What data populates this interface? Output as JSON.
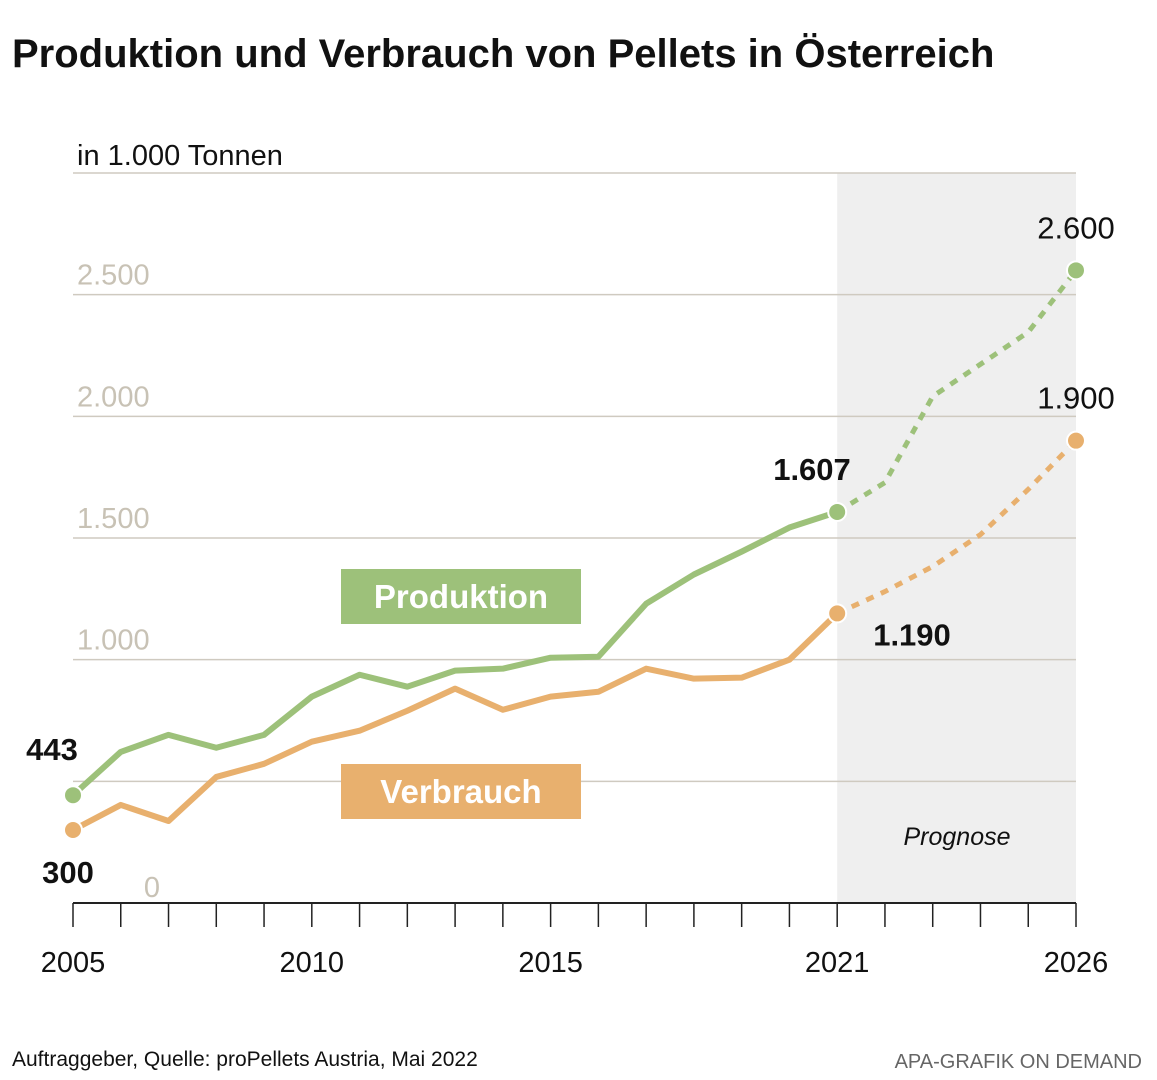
{
  "chart_data": {
    "type": "line",
    "title": "Produktion und Verbrauch von Pellets in Österreich",
    "ylabel": "in 1.000 Tonnen",
    "ylim": [
      0,
      3000
    ],
    "xlim": [
      2005,
      2026
    ],
    "yticks": [
      {
        "v": 0,
        "label": "0"
      },
      {
        "v": 1000,
        "label": "1.000"
      },
      {
        "v": 1500,
        "label": "1.500"
      },
      {
        "v": 2000,
        "label": "2.000"
      },
      {
        "v": 2500,
        "label": "2.500"
      }
    ],
    "ygrid": [
      500,
      1000,
      1500,
      2000,
      2500,
      3000
    ],
    "xticks_labeled": [
      {
        "v": 2005,
        "label": "2005"
      },
      {
        "v": 2010,
        "label": "2010"
      },
      {
        "v": 2015,
        "label": "2015"
      },
      {
        "v": 2021,
        "label": "2021"
      },
      {
        "v": 2026,
        "label": "2026"
      }
    ],
    "forecast_from": 2021,
    "forecast_label": "Prognose",
    "x": [
      2005,
      2006,
      2007,
      2008,
      2009,
      2010,
      2011,
      2012,
      2013,
      2014,
      2015,
      2016,
      2017,
      2018,
      2019,
      2020,
      2021,
      2022,
      2023,
      2024,
      2025,
      2026
    ],
    "series": [
      {
        "name": "Produktion",
        "color": "#9dc17a",
        "values": [
          443,
          621,
          691,
          638,
          691,
          848,
          938,
          889,
          955,
          963,
          1008,
          1012,
          1230,
          1350,
          1444,
          1543,
          1607,
          1728,
          2082,
          2214,
          2346,
          2600
        ],
        "labels": [
          {
            "x": 2005,
            "text": "443",
            "bold": true
          },
          {
            "x": 2021,
            "text": "1.607",
            "bold": true
          },
          {
            "x": 2026,
            "text": "2.600",
            "bold": false
          }
        ]
      },
      {
        "name": "Verbrauch",
        "color": "#e8b06e",
        "values": [
          300,
          403,
          337,
          518,
          572,
          663,
          708,
          790,
          881,
          794,
          848,
          868,
          963,
          922,
          926,
          1000,
          1190,
          1280,
          1383,
          1514,
          1700,
          1900
        ],
        "labels": [
          {
            "x": 2005,
            "text": "300",
            "bold": true
          },
          {
            "x": 2021,
            "text": "1.190",
            "bold": true
          },
          {
            "x": 2026,
            "text": "1.900",
            "bold": false
          }
        ]
      }
    ]
  },
  "footer": {
    "source": "Auftraggeber, Quelle: proPellets Austria, Mai 2022",
    "credit": "APA-GRAFIK ON DEMAND"
  }
}
